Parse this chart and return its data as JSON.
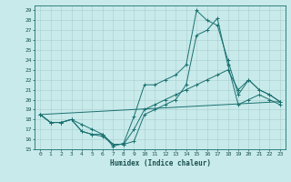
{
  "title": "",
  "xlabel": "Humidex (Indice chaleur)",
  "background_color": "#c8eaea",
  "grid_color": "#a8cccc",
  "line_color": "#1a7070",
  "xlim": [
    -0.5,
    23.5
  ],
  "ylim": [
    15,
    29.5
  ],
  "yticks": [
    15,
    16,
    17,
    18,
    19,
    20,
    21,
    22,
    23,
    24,
    25,
    26,
    27,
    28,
    29
  ],
  "xticks": [
    0,
    1,
    2,
    3,
    4,
    5,
    6,
    7,
    8,
    9,
    10,
    11,
    12,
    13,
    14,
    15,
    16,
    17,
    18,
    19,
    20,
    21,
    22,
    23
  ],
  "line1_x": [
    0,
    1,
    2,
    3,
    4,
    5,
    6,
    7,
    8,
    9,
    10,
    11,
    12,
    13,
    14,
    15,
    16,
    17,
    18,
    19,
    20,
    21,
    22,
    23
  ],
  "line1_y": [
    18.5,
    17.7,
    17.7,
    18.0,
    17.5,
    17.0,
    16.5,
    15.3,
    15.6,
    18.3,
    21.5,
    21.5,
    22.0,
    22.5,
    23.5,
    29.0,
    28.0,
    27.5,
    24.0,
    20.5,
    22.0,
    21.0,
    20.5,
    19.8
  ],
  "line2_x": [
    0,
    1,
    2,
    3,
    4,
    5,
    6,
    7,
    8,
    9,
    10,
    11,
    12,
    13,
    14,
    15,
    16,
    17,
    18,
    19,
    20,
    21,
    22,
    23
  ],
  "line2_y": [
    18.5,
    17.7,
    17.7,
    18.0,
    16.8,
    16.5,
    16.5,
    15.5,
    15.5,
    15.8,
    18.5,
    19.0,
    19.5,
    20.0,
    21.5,
    26.5,
    27.0,
    28.2,
    23.5,
    19.5,
    20.0,
    20.5,
    20.0,
    19.5
  ],
  "line3_x": [
    0,
    23
  ],
  "line3_y": [
    18.5,
    19.8
  ],
  "line4_x": [
    0,
    1,
    2,
    3,
    4,
    5,
    6,
    7,
    8,
    9,
    10,
    11,
    12,
    13,
    14,
    15,
    16,
    17,
    18,
    19,
    20,
    21,
    22,
    23
  ],
  "line4_y": [
    18.5,
    17.7,
    17.7,
    18.0,
    16.8,
    16.5,
    16.3,
    15.5,
    15.5,
    17.0,
    19.0,
    19.5,
    20.0,
    20.5,
    21.0,
    21.5,
    22.0,
    22.5,
    23.0,
    21.0,
    22.0,
    21.0,
    20.5,
    19.8
  ]
}
